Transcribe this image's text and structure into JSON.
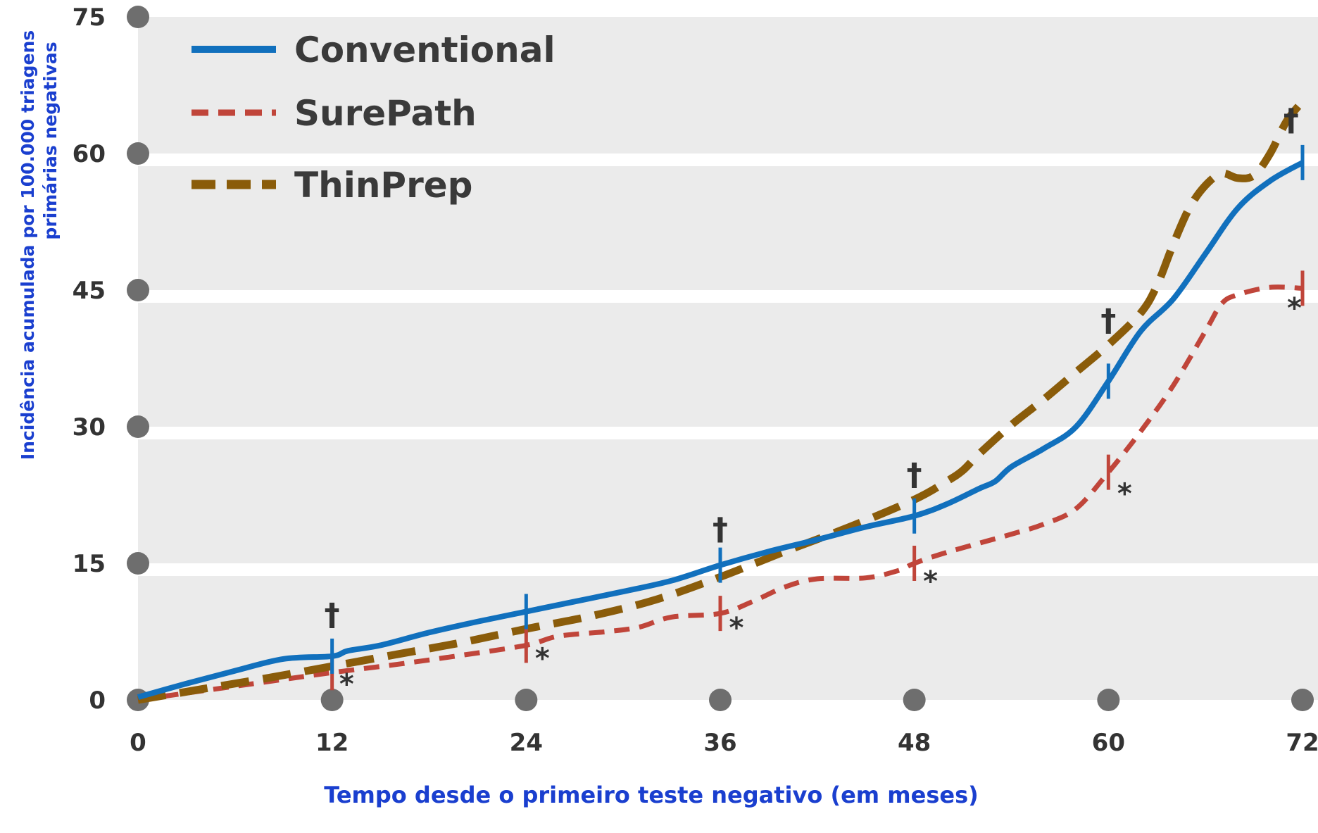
{
  "chart_data": {
    "type": "line",
    "xlabel": "Tempo desde o primeiro teste negativo (em meses)",
    "ylabel_line1": "Incidência acumulada por 100.000 triagens",
    "ylabel_line2": "primárias negativas",
    "xlim": [
      0,
      72
    ],
    "ylim": [
      0,
      75
    ],
    "xticks": [
      "0",
      "12",
      "24",
      "36",
      "48",
      "60",
      "72"
    ],
    "yticks": [
      "0",
      "15",
      "30",
      "45",
      "60",
      "75"
    ],
    "legend_position": "top-left",
    "series": [
      {
        "name": "Conventional",
        "color": "#1170bd",
        "style": "solid",
        "points": [
          [
            0,
            0.3
          ],
          [
            3,
            1.8
          ],
          [
            6,
            3.2
          ],
          [
            9,
            4.5
          ],
          [
            12,
            4.8
          ],
          [
            13,
            5.4
          ],
          [
            15,
            6.0
          ],
          [
            18,
            7.4
          ],
          [
            21,
            8.6
          ],
          [
            24,
            9.7
          ],
          [
            27,
            10.8
          ],
          [
            30,
            11.9
          ],
          [
            33,
            13.1
          ],
          [
            36,
            14.8
          ],
          [
            39,
            16.3
          ],
          [
            42,
            17.6
          ],
          [
            45,
            19.0
          ],
          [
            48,
            20.2
          ],
          [
            50,
            21.5
          ],
          [
            52,
            23.2
          ],
          [
            53,
            24.0
          ],
          [
            54,
            25.6
          ],
          [
            56,
            27.6
          ],
          [
            58,
            30.0
          ],
          [
            60,
            35.0
          ],
          [
            62,
            40.5
          ],
          [
            64,
            44.0
          ],
          [
            66,
            49.0
          ],
          [
            68,
            54.0
          ],
          [
            70,
            57.0
          ],
          [
            72,
            59.0
          ]
        ],
        "markers": [
          12,
          24,
          36,
          48,
          60,
          72
        ]
      },
      {
        "name": "SurePath",
        "color": "#c0453a",
        "style": "dashed",
        "points": [
          [
            0,
            0
          ],
          [
            4,
            1.0
          ],
          [
            8,
            2.0
          ],
          [
            12,
            3.0
          ],
          [
            16,
            3.9
          ],
          [
            20,
            4.9
          ],
          [
            24,
            6.0
          ],
          [
            26,
            7.0
          ],
          [
            29,
            7.5
          ],
          [
            31,
            8.0
          ],
          [
            33,
            9.1
          ],
          [
            36,
            9.5
          ],
          [
            38,
            10.8
          ],
          [
            40,
            12.4
          ],
          [
            42,
            13.3
          ],
          [
            45,
            13.4
          ],
          [
            47,
            14.2
          ],
          [
            48,
            15.0
          ],
          [
            50,
            16.2
          ],
          [
            54,
            18.2
          ],
          [
            56,
            19.3
          ],
          [
            58,
            21.0
          ],
          [
            60,
            25.0
          ],
          [
            62,
            29.5
          ],
          [
            64,
            34.5
          ],
          [
            66,
            40.5
          ],
          [
            67,
            43.5
          ],
          [
            68,
            44.5
          ],
          [
            70,
            45.3
          ],
          [
            72,
            45.2
          ]
        ],
        "markers": [
          12,
          24,
          36,
          48,
          60,
          72
        ]
      },
      {
        "name": "ThinPrep",
        "color": "#8a5c0a",
        "style": "dashed",
        "points": [
          [
            0,
            0
          ],
          [
            4,
            1.2
          ],
          [
            8,
            2.4
          ],
          [
            12,
            3.7
          ],
          [
            16,
            5.0
          ],
          [
            20,
            6.3
          ],
          [
            24,
            7.8
          ],
          [
            28,
            9.2
          ],
          [
            32,
            11.0
          ],
          [
            36,
            13.5
          ],
          [
            40,
            16.3
          ],
          [
            44,
            19.0
          ],
          [
            48,
            22.0
          ],
          [
            50,
            24.0
          ],
          [
            51,
            25.2
          ],
          [
            52,
            27.0
          ],
          [
            54,
            30.2
          ],
          [
            56,
            33.0
          ],
          [
            58,
            36.0
          ],
          [
            60,
            39.0
          ],
          [
            62,
            42.5
          ],
          [
            63,
            45.5
          ],
          [
            64,
            50.0
          ],
          [
            65,
            54.0
          ],
          [
            66,
            56.5
          ],
          [
            67,
            57.8
          ],
          [
            68,
            57.3
          ],
          [
            69,
            57.6
          ],
          [
            70,
            60.0
          ],
          [
            71,
            63.5
          ],
          [
            72,
            65.7
          ]
        ],
        "markers": []
      }
    ],
    "annotations": [
      {
        "text": "†",
        "x": 12,
        "y": 8.2
      },
      {
        "text": "†",
        "x": 36,
        "y": 17.6
      },
      {
        "text": "†",
        "x": 48,
        "y": 23.6
      },
      {
        "text": "†",
        "x": 60,
        "y": 40.5
      },
      {
        "text": "†",
        "x": 71.3,
        "y": 62.5
      },
      {
        "text": "*",
        "x": 12.9,
        "y": 0.7
      },
      {
        "text": "*",
        "x": 25.0,
        "y": 3.5
      },
      {
        "text": "*",
        "x": 37.0,
        "y": 6.9
      },
      {
        "text": "*",
        "x": 49.0,
        "y": 12.0
      },
      {
        "text": "*",
        "x": 61.0,
        "y": 21.6
      },
      {
        "text": "*",
        "x": 71.5,
        "y": 42.0
      }
    ]
  }
}
